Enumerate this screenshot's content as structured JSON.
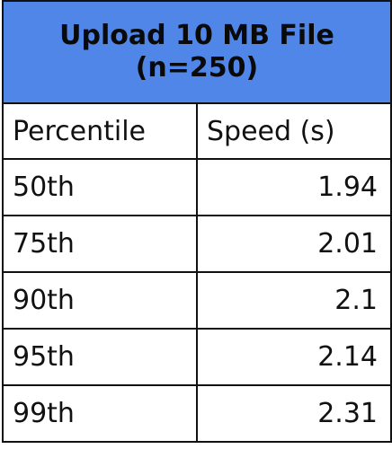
{
  "table": {
    "title_line1": "Upload 10 MB File",
    "title_line2": "(n=250)",
    "header_bg": "#4f86e8",
    "columns": [
      "Percentile",
      "Speed (s)"
    ],
    "rows": [
      {
        "percentile": "50th",
        "speed": "1.94"
      },
      {
        "percentile": "75th",
        "speed": "2.01"
      },
      {
        "percentile": "90th",
        "speed": "2.1"
      },
      {
        "percentile": "95th",
        "speed": "2.14"
      },
      {
        "percentile": "99th",
        "speed": "2.31"
      }
    ]
  }
}
